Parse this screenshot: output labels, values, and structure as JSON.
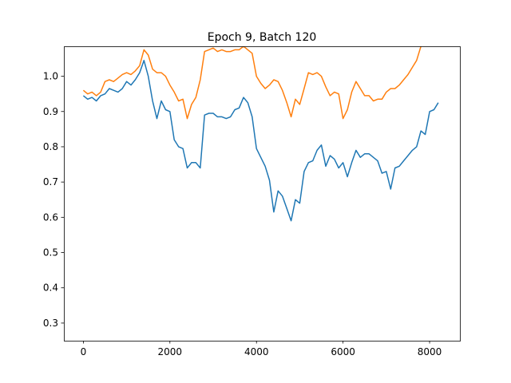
{
  "chart_data": {
    "type": "line",
    "title": "Epoch 9, Batch 120",
    "xlabel": "",
    "ylabel": "",
    "xlim": [
      -450,
      8700
    ],
    "ylim": [
      0.25,
      1.085
    ],
    "xticks": [
      0,
      2000,
      4000,
      6000,
      8000
    ],
    "xtick_labels": [
      "0",
      "2000",
      "4000",
      "6000",
      "8000"
    ],
    "yticks": [
      0.3,
      0.4,
      0.5,
      0.6,
      0.7,
      0.8,
      0.9,
      1.0
    ],
    "ytick_labels": [
      "0.3",
      "0.4",
      "0.5",
      "0.6",
      "0.7",
      "0.8",
      "0.9",
      "1.0"
    ],
    "grid": false,
    "series": [
      {
        "color": "#ff7f0e",
        "x": [
          0,
          100,
          200,
          300,
          400,
          500,
          600,
          700,
          800,
          900,
          1000,
          1100,
          1200,
          1300,
          1400,
          1500,
          1600,
          1700,
          1800,
          1900,
          2000,
          2100,
          2200,
          2300,
          2400,
          2500,
          2600,
          2700,
          2800,
          2900,
          3000,
          3100,
          3200,
          3300,
          3400,
          3500,
          3600,
          3700,
          3800,
          3900,
          4000,
          4100,
          4200,
          4300,
          4400,
          4500,
          4600,
          4700,
          4800,
          4900,
          5000,
          5100,
          5200,
          5300,
          5400,
          5500,
          5600,
          5700,
          5800,
          5900,
          6000,
          6100,
          6200,
          6300,
          6400,
          6500,
          6600,
          6700,
          6800,
          6900,
          7000,
          7100,
          7200,
          7300,
          7400,
          7500,
          7600,
          7700,
          7800
        ],
        "y": [
          0.96,
          0.95,
          0.955,
          0.945,
          0.955,
          0.985,
          0.99,
          0.985,
          0.995,
          1.005,
          1.01,
          1.005,
          1.015,
          1.03,
          1.075,
          1.06,
          1.02,
          1.01,
          1.01,
          1.0,
          0.975,
          0.955,
          0.93,
          0.935,
          0.88,
          0.92,
          0.94,
          0.99,
          1.07,
          1.075,
          1.08,
          1.07,
          1.075,
          1.07,
          1.07,
          1.075,
          1.075,
          1.085,
          1.075,
          1.065,
          1.0,
          0.98,
          0.965,
          0.975,
          0.99,
          0.985,
          0.96,
          0.925,
          0.885,
          0.935,
          0.92,
          0.965,
          1.01,
          1.005,
          1.01,
          1.0,
          0.97,
          0.945,
          0.955,
          0.95,
          0.88,
          0.905,
          0.955,
          0.985,
          0.965,
          0.945,
          0.945,
          0.93,
          0.935,
          0.935,
          0.955,
          0.965,
          0.965,
          0.975,
          0.99,
          1.005,
          1.025,
          1.045,
          1.085
        ]
      },
      {
        "color": "#1f77b4",
        "x": [
          0,
          100,
          200,
          300,
          400,
          500,
          600,
          700,
          800,
          900,
          1000,
          1100,
          1200,
          1300,
          1400,
          1500,
          1600,
          1700,
          1800,
          1900,
          2000,
          2100,
          2200,
          2300,
          2400,
          2500,
          2600,
          2700,
          2800,
          2900,
          3000,
          3100,
          3200,
          3300,
          3400,
          3500,
          3600,
          3700,
          3800,
          3900,
          4000,
          4100,
          4200,
          4300,
          4400,
          4500,
          4600,
          4700,
          4800,
          4900,
          5000,
          5100,
          5200,
          5300,
          5400,
          5500,
          5600,
          5700,
          5800,
          5900,
          6000,
          6100,
          6200,
          6300,
          6400,
          6500,
          6600,
          6700,
          6800,
          6900,
          7000,
          7100,
          7200,
          7300,
          7400,
          7500,
          7600,
          7700,
          7800,
          7900,
          8000,
          8100,
          8200
        ],
        "y": [
          0.945,
          0.935,
          0.94,
          0.93,
          0.945,
          0.95,
          0.965,
          0.96,
          0.955,
          0.965,
          0.985,
          0.975,
          0.99,
          1.01,
          1.045,
          1.0,
          0.93,
          0.88,
          0.93,
          0.905,
          0.9,
          0.82,
          0.8,
          0.795,
          0.74,
          0.755,
          0.755,
          0.74,
          0.89,
          0.895,
          0.895,
          0.885,
          0.885,
          0.88,
          0.885,
          0.905,
          0.91,
          0.94,
          0.925,
          0.885,
          0.795,
          0.77,
          0.745,
          0.705,
          0.615,
          0.675,
          0.66,
          0.625,
          0.59,
          0.65,
          0.64,
          0.73,
          0.755,
          0.76,
          0.79,
          0.805,
          0.745,
          0.775,
          0.765,
          0.74,
          0.755,
          0.715,
          0.755,
          0.79,
          0.77,
          0.78,
          0.78,
          0.77,
          0.76,
          0.725,
          0.73,
          0.68,
          0.74,
          0.745,
          0.76,
          0.775,
          0.79,
          0.8,
          0.845,
          0.835,
          0.9,
          0.905,
          0.925
        ]
      }
    ]
  }
}
